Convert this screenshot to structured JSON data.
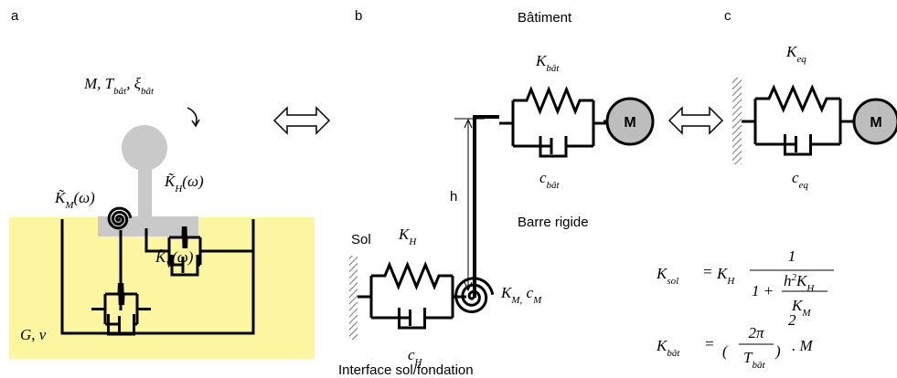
{
  "panels": {
    "a": {
      "letter": "a",
      "mass_label": [
        {
          "text": "M, T"
        },
        {
          "sub": "bât"
        },
        {
          "text": ", ξ"
        },
        {
          "sub": "bât"
        }
      ],
      "k_m": [
        {
          "text": "K̃"
        },
        {
          "sub": "M"
        },
        {
          "text": "(ω)"
        }
      ],
      "k_h": [
        {
          "text": "K̃"
        },
        {
          "sub": "H"
        },
        {
          "text": "(ω)"
        }
      ],
      "k_v": [
        {
          "text": "K̃"
        },
        {
          "sub": "V"
        },
        {
          "text": "(ω)"
        }
      ],
      "soil": [
        {
          "text": "G, ν"
        }
      ]
    },
    "b": {
      "letter": "b",
      "title": "Bâtiment",
      "k_bat": [
        {
          "text": "K"
        },
        {
          "sub": "bât"
        }
      ],
      "mass": "M",
      "c_bat": [
        {
          "text": "c"
        },
        {
          "sub": "bât"
        }
      ],
      "height": "h",
      "sol": "Sol",
      "k_h": [
        {
          "text": "K"
        },
        {
          "sub": "H"
        }
      ],
      "bar": "Barre rigide",
      "k_m_c_m": [
        {
          "text": "K"
        },
        {
          "sub": "M,"
        },
        {
          "text": " c"
        },
        {
          "sub": "M"
        }
      ],
      "c_h": [
        {
          "text": "c"
        },
        {
          "sub": "H"
        }
      ],
      "interface": "Interface sol/fondation"
    },
    "c": {
      "letter": "c",
      "k_eq": [
        {
          "text": "K"
        },
        {
          "sub": "eq"
        }
      ],
      "mass": "M",
      "c_eq": [
        {
          "text": "c"
        },
        {
          "sub": "eq"
        }
      ]
    }
  },
  "formulas": {
    "k_sol": {
      "lhs": [
        {
          "text": "K"
        },
        {
          "sub": "sol"
        }
      ],
      "eq": "=",
      "factor": [
        {
          "text": "K"
        },
        {
          "sub": "H"
        }
      ],
      "numerator": "1",
      "denominator_start": "1 +",
      "inner_numerator": [
        {
          "text": "h"
        },
        {
          "sup": "2"
        },
        {
          "text": "K"
        },
        {
          "sub": "H"
        }
      ],
      "inner_denominator": [
        {
          "text": "K"
        },
        {
          "sub": "M"
        }
      ]
    },
    "k_bat": {
      "lhs": [
        {
          "text": "K"
        },
        {
          "sub": "bât"
        }
      ],
      "eq": "=",
      "open": "(",
      "numerator": "2π",
      "denominator": [
        {
          "text": "T"
        },
        {
          "sub": "bât"
        }
      ],
      "close": ")",
      "exponent": "2",
      "tail": ". M"
    }
  }
}
